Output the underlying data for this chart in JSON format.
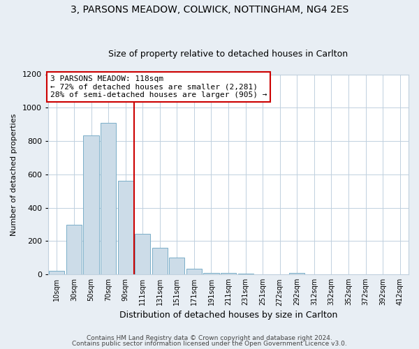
{
  "title_line1": "3, PARSONS MEADOW, COLWICK, NOTTINGHAM, NG4 2ES",
  "title_line2": "Size of property relative to detached houses in Carlton",
  "xlabel": "Distribution of detached houses by size in Carlton",
  "ylabel": "Number of detached properties",
  "bar_labels": [
    "10sqm",
    "30sqm",
    "50sqm",
    "70sqm",
    "90sqm",
    "111sqm",
    "131sqm",
    "151sqm",
    "171sqm",
    "191sqm",
    "211sqm",
    "231sqm",
    "251sqm",
    "272sqm",
    "292sqm",
    "312sqm",
    "332sqm",
    "352sqm",
    "372sqm",
    "392sqm",
    "412sqm"
  ],
  "bar_values": [
    20,
    300,
    835,
    910,
    560,
    243,
    160,
    100,
    35,
    10,
    8,
    5,
    2,
    0,
    10,
    0,
    0,
    0,
    0,
    0,
    0
  ],
  "bar_color": "#ccdce8",
  "bar_edgecolor": "#7aaec8",
  "vline_color": "#cc0000",
  "vline_index": 5,
  "annotation_line1": "3 PARSONS MEADOW: 118sqm",
  "annotation_line2": "← 72% of detached houses are smaller (2,281)",
  "annotation_line3": "28% of semi-detached houses are larger (905) →",
  "annotation_box_facecolor": "white",
  "annotation_box_edgecolor": "#cc0000",
  "ylim": [
    0,
    1200
  ],
  "yticks": [
    0,
    200,
    400,
    600,
    800,
    1000,
    1200
  ],
  "footer_line1": "Contains HM Land Registry data © Crown copyright and database right 2024.",
  "footer_line2": "Contains public sector information licensed under the Open Government Licence v3.0.",
  "bg_color": "#e8eef4",
  "plot_bg": "white",
  "grid_color": "#c0d0de",
  "title1_fontsize": 10,
  "title2_fontsize": 9,
  "annotation_fontsize": 8,
  "xlabel_fontsize": 9,
  "ylabel_fontsize": 8,
  "xtick_fontsize": 7,
  "ytick_fontsize": 8,
  "footer_fontsize": 6.5
}
